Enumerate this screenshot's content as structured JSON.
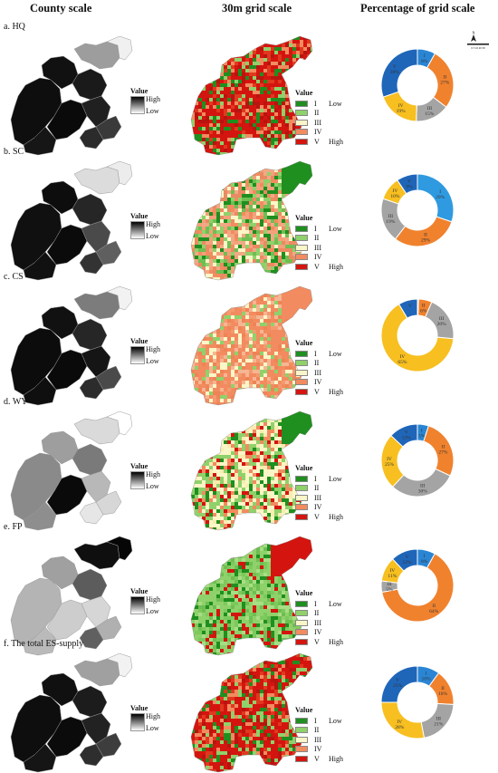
{
  "headers": {
    "county": "County scale",
    "grid": "30m grid scale",
    "pct": "Percentage of grid scale"
  },
  "county_legend": {
    "title": "Value",
    "high": "High",
    "low": "Low"
  },
  "grid_legend": {
    "title": "Value",
    "classes": [
      {
        "label": "I",
        "extra": "Low",
        "color": "#1f8f1f"
      },
      {
        "label": "II",
        "extra": "",
        "color": "#8fd16a"
      },
      {
        "label": "III",
        "extra": "",
        "color": "#fbf6c7"
      },
      {
        "label": "IV",
        "extra": "",
        "color": "#f28b5f"
      },
      {
        "label": "V",
        "extra": "High",
        "color": "#d4150f"
      }
    ]
  },
  "compass": {
    "n": "N",
    "scale": "0 5 10 20 30"
  },
  "rows": [
    {
      "label": "a. HQ",
      "grey_fill": [
        "#0e0e0e",
        "#111111",
        "#9d9d9d",
        "#1a1a1a",
        "#0a0a0a",
        "#202020",
        "#161616",
        "#3a3a3a",
        "#2b2b2b",
        "#f0f0f0"
      ],
      "grid_tone": "red"
    },
    {
      "label": "b. SC",
      "grey_fill": [
        "#101010",
        "#0d0d0d",
        "#dcdcdc",
        "#262626",
        "#0b0b0b",
        "#4a4a4a",
        "#111111",
        "#5f5f5f",
        "#333333",
        "#ececec"
      ],
      "grid_tone": "peach"
    },
    {
      "label": "c. CS",
      "grey_fill": [
        "#0c0c0c",
        "#111111",
        "#7c7c7c",
        "#262626",
        "#0a0a0a",
        "#151515",
        "#0f0f0f",
        "#4a4a4a",
        "#2c2c2c",
        "#f2f2f2"
      ],
      "grid_tone": "orange"
    },
    {
      "label": "d. WY",
      "grey_fill": [
        "#8a8a8a",
        "#9e9e9e",
        "#dadada",
        "#7a7a7a",
        "#0a0a0a",
        "#b8b8b8",
        "#8e8e8e",
        "#d7d7d7",
        "#e6e6e6",
        "#ffffff"
      ],
      "grid_tone": "mix"
    },
    {
      "label": "e. FP",
      "grey_fill": [
        "#b4b4b4",
        "#a0a0a0",
        "#0f0f0f",
        "#5c5c5c",
        "#cdcdcd",
        "#d6d6d6",
        "#bababa",
        "#b0b0b0",
        "#606060",
        "#060606"
      ],
      "grid_tone": "green"
    },
    {
      "label": "f. The total ES-supply",
      "grey_fill": [
        "#0e0e0e",
        "#101010",
        "#a0a0a0",
        "#1c1c1c",
        "#0b0b0b",
        "#222222",
        "#151515",
        "#3d3d3d",
        "#2e2e2e",
        "#f2f2f2"
      ],
      "grid_tone": "red"
    }
  ],
  "chart_data": [
    {
      "type": "pie",
      "title": "a. HQ",
      "labels": [
        "I",
        "II",
        "III",
        "IV",
        "V"
      ],
      "values": [
        8,
        27,
        15,
        19,
        30
      ],
      "percent_labels": [
        "8%",
        "27%",
        "15%",
        "19%",
        "30%"
      ],
      "colors": [
        "#2a86d4",
        "#f0822e",
        "#a4a4a4",
        "#f7bf20",
        "#1f66b9"
      ]
    },
    {
      "type": "pie",
      "title": "b. SC",
      "labels": [
        "I",
        "II",
        "III",
        "IV",
        "V"
      ],
      "values": [
        29,
        29,
        19,
        10,
        9
      ],
      "percent_labels": [
        "29%",
        "29%",
        "19%",
        "10%",
        "9%"
      ],
      "colors": [
        "#2f9ae0",
        "#f0822e",
        "#a4a4a4",
        "#f7bf20",
        "#1f66b9"
      ]
    },
    {
      "type": "pie",
      "title": "c. CS",
      "labels": [
        "I",
        "II",
        "III",
        "IV",
        "V"
      ],
      "values": [
        0.5,
        6,
        20,
        65,
        8.5
      ],
      "percent_labels": [
        "0%",
        "6%",
        "20%",
        "65%",
        ""
      ],
      "colors": [
        "#2a86d4",
        "#f0822e",
        "#a4a4a4",
        "#f7bf20",
        "#1f66b9"
      ]
    },
    {
      "type": "pie",
      "title": "d. WY",
      "labels": [
        "I",
        "II",
        "III",
        "IV",
        "V"
      ],
      "values": [
        5,
        27,
        30,
        25,
        13
      ],
      "percent_labels": [
        "5%",
        "27%",
        "30%",
        "25%",
        "13%"
      ],
      "colors": [
        "#2a86d4",
        "#f0822e",
        "#a4a4a4",
        "#f7bf20",
        "#1f66b9"
      ]
    },
    {
      "type": "pie",
      "title": "e. FP",
      "labels": [
        "I",
        "II",
        "III",
        "IV",
        "V"
      ],
      "values": [
        8,
        64,
        5,
        11,
        12
      ],
      "percent_labels": [
        "8%",
        "64%",
        "5%",
        "11%",
        "12%"
      ],
      "colors": [
        "#2a86d4",
        "#f0822e",
        "#a4a4a4",
        "#f7bf20",
        "#1f66b9"
      ]
    },
    {
      "type": "pie",
      "title": "f. The total ES-supply",
      "labels": [
        "I",
        "II",
        "III",
        "IV",
        "V"
      ],
      "values": [
        10,
        16,
        21,
        28,
        25
      ],
      "percent_labels": [
        "10%",
        "16%",
        "21%",
        "28%",
        "25%"
      ],
      "colors": [
        "#2a86d4",
        "#f0822e",
        "#a4a4a4",
        "#f7bf20",
        "#1f66b9"
      ]
    }
  ]
}
